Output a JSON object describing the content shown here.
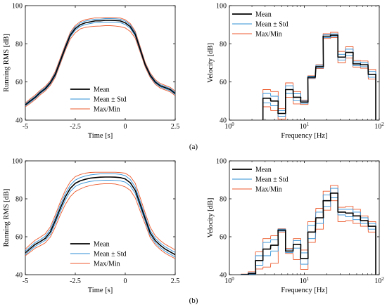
{
  "captions": [
    "(a)",
    "(b)"
  ],
  "legend": [
    "Mean",
    "Mean ± Std",
    "Max/Min"
  ],
  "colors": {
    "mean": "#000000",
    "std": "#2e8fd6",
    "maxmin": "#ec5a2c"
  },
  "chart_data": [
    {
      "type": "line",
      "panel": "a-left",
      "xlabel": "Time [s]",
      "ylabel": "Running RMS [dB]",
      "xlim": [
        -5,
        2.5
      ],
      "ylim": [
        40,
        100
      ],
      "xticks": [
        -5,
        -2.5,
        0,
        2.5
      ],
      "xticklabels": [
        "-5",
        "-2.5",
        "0",
        "2.5"
      ],
      "yticks": [
        40,
        60,
        80,
        100
      ],
      "yticklabels": [
        "40",
        "60",
        "80",
        "100"
      ],
      "x": [
        -5,
        -4.75,
        -4.5,
        -4.25,
        -4,
        -3.75,
        -3.5,
        -3.25,
        -3,
        -2.75,
        -2.5,
        -2.25,
        -2,
        -1.75,
        -1.5,
        -1.25,
        -1,
        -0.75,
        -0.5,
        -0.25,
        0,
        0.25,
        0.5,
        0.75,
        1,
        1.25,
        1.5,
        1.75,
        2,
        2.25,
        2.5
      ],
      "series": [
        {
          "name": "Mean",
          "values": [
            48,
            50,
            52,
            54.5,
            56.5,
            59.5,
            64,
            71,
            78,
            84.5,
            88,
            90,
            91,
            91.5,
            92,
            92,
            92.3,
            92.3,
            92.2,
            92,
            91,
            89,
            85,
            77,
            69,
            63.5,
            60,
            58,
            57,
            56,
            54
          ]
        },
        {
          "name": "Mean + Std",
          "values": [
            48.5,
            50.6,
            52.6,
            55.1,
            57.1,
            60.1,
            64.8,
            71.8,
            78.8,
            85.3,
            88.9,
            90.9,
            91.9,
            92.4,
            92.9,
            92.9,
            93.2,
            93.2,
            93.1,
            92.9,
            91.9,
            89.9,
            85.9,
            77.8,
            69.6,
            64.1,
            60.6,
            58.6,
            57.6,
            56.6,
            54.6
          ]
        },
        {
          "name": "Mean - Std",
          "values": [
            47.5,
            49.4,
            51.4,
            53.9,
            55.9,
            58.9,
            63.2,
            70.2,
            77.2,
            83.7,
            87.1,
            89.1,
            90.1,
            90.6,
            91.1,
            91.1,
            91.4,
            91.4,
            91.3,
            91.1,
            90.1,
            88.1,
            84.1,
            76.2,
            68.4,
            62.9,
            59.4,
            57.4,
            56.4,
            55.4,
            53.4
          ]
        },
        {
          "name": "Max",
          "values": [
            49,
            51.2,
            53.2,
            55.7,
            57.7,
            60.7,
            65.5,
            72.5,
            79.5,
            86,
            89.6,
            91.6,
            92.6,
            93.1,
            93.6,
            93.6,
            93.8,
            93.8,
            93.7,
            93.5,
            92.6,
            90.6,
            86.6,
            78.5,
            70.2,
            64.7,
            61.2,
            59.2,
            58.2,
            57.2,
            55.2
          ]
        },
        {
          "name": "Min",
          "values": [
            47,
            48.8,
            50.8,
            53.3,
            55.3,
            58.2,
            62.5,
            69.5,
            76.5,
            82.5,
            85.8,
            87.8,
            88.6,
            89,
            89.2,
            89.3,
            89.5,
            89.5,
            89.3,
            89,
            88.3,
            86.5,
            83,
            75.5,
            67.8,
            62.3,
            58.8,
            56.8,
            55.8,
            54.8,
            52.8
          ]
        }
      ]
    },
    {
      "type": "line",
      "panel": "a-right",
      "xscale": "log",
      "xlabel": "Frequency [Hz]",
      "ylabel": "Velocity [dB]",
      "xlim": [
        1,
        100
      ],
      "ylim": [
        40,
        100
      ],
      "xticks": [
        1,
        10,
        100
      ],
      "xticklabels": [
        "10^0",
        "10^1",
        "10^2"
      ],
      "yticks": [
        40,
        60,
        80,
        100
      ],
      "yticklabels": [
        "40",
        "60",
        "80",
        "100"
      ],
      "x": [
        3.15,
        4,
        5,
        6.3,
        8,
        10,
        12.5,
        16,
        20,
        25,
        31.5,
        40,
        50,
        63,
        80
      ],
      "series": [
        {
          "name": "Mean",
          "values": [
            51.5,
            50,
            43.5,
            56,
            52,
            49.5,
            62.5,
            68,
            84,
            84.5,
            73,
            75.5,
            69.5,
            69,
            64
          ]
        },
        {
          "name": "Mean + Std",
          "values": [
            54,
            52.5,
            45,
            58,
            53.8,
            50.2,
            63,
            68.7,
            84.7,
            85.2,
            74.5,
            77.2,
            70.5,
            70,
            65.5
          ]
        },
        {
          "name": "Mean - Std",
          "values": [
            49,
            47.5,
            42,
            54,
            50.2,
            48.8,
            62,
            67.3,
            83.3,
            83.8,
            71.5,
            73.8,
            68.5,
            68,
            62.5
          ]
        },
        {
          "name": "Max",
          "values": [
            56,
            55,
            46,
            59.5,
            55,
            50.5,
            63.2,
            69,
            85.3,
            86,
            76,
            78.5,
            71.2,
            71,
            66.5
          ]
        },
        {
          "name": "Min",
          "values": [
            47,
            45,
            40.5,
            52,
            48.5,
            48.2,
            61.8,
            67,
            82.8,
            83.3,
            70,
            72.5,
            67.8,
            67.2,
            61.5
          ]
        }
      ]
    },
    {
      "type": "line",
      "panel": "b-left",
      "xlabel": "Time [s]",
      "ylabel": "Running RMS [dB]",
      "xlim": [
        -5,
        2.5
      ],
      "ylim": [
        40,
        100
      ],
      "xticks": [
        -5,
        -2.5,
        0,
        2.5
      ],
      "xticklabels": [
        "-5",
        "-2.5",
        "0",
        "2.5"
      ],
      "yticks": [
        40,
        60,
        80,
        100
      ],
      "yticklabels": [
        "40",
        "60",
        "80",
        "100"
      ],
      "x": [
        -5,
        -4.75,
        -4.5,
        -4.25,
        -4,
        -3.75,
        -3.5,
        -3.25,
        -3,
        -2.75,
        -2.5,
        -2.25,
        -2,
        -1.75,
        -1.5,
        -1.25,
        -1,
        -0.75,
        -0.5,
        -0.25,
        0,
        0.25,
        0.5,
        0.75,
        1,
        1.25,
        1.5,
        1.75,
        2,
        2.25,
        2.5
      ],
      "series": [
        {
          "name": "Mean",
          "values": [
            51.5,
            53.8,
            56,
            57.5,
            59.2,
            62.5,
            68.5,
            75,
            81,
            85.5,
            88.2,
            89.5,
            90.3,
            90.9,
            91.2,
            91.4,
            91.5,
            91.5,
            91.4,
            91.2,
            90.5,
            88.5,
            84.5,
            77,
            69.5,
            62,
            58,
            55.5,
            53.5,
            52,
            50.5
          ]
        },
        {
          "name": "Mean + Std",
          "values": [
            52.5,
            54.8,
            57,
            58.5,
            60.3,
            63.8,
            70,
            76.7,
            82.7,
            87.2,
            89.9,
            91.2,
            92,
            92.6,
            92.9,
            93.1,
            93.2,
            93.2,
            93.1,
            92.9,
            92.2,
            90.2,
            86.2,
            78.6,
            70.9,
            63.3,
            59.2,
            56.7,
            54.7,
            53.2,
            51.7
          ]
        },
        {
          "name": "Mean - Std",
          "values": [
            50.5,
            52.8,
            55,
            56.5,
            58.1,
            61.2,
            67,
            73.3,
            79.3,
            83.8,
            86.5,
            87.8,
            88.6,
            89.2,
            89.5,
            89.7,
            89.8,
            89.8,
            89.7,
            89.5,
            88.8,
            86.8,
            82.8,
            75.4,
            68.1,
            60.7,
            56.8,
            54.3,
            52.3,
            50.8,
            49.3
          ]
        },
        {
          "name": "Max",
          "values": [
            53.5,
            56,
            58.2,
            59.8,
            61.6,
            65.2,
            71.5,
            78.3,
            84.5,
            89,
            91.7,
            92.8,
            93.5,
            93.9,
            94,
            94,
            94,
            94,
            94,
            93.8,
            93.5,
            91.8,
            88.2,
            80.5,
            72.5,
            65,
            60.6,
            58,
            56,
            54.6,
            53
          ]
        },
        {
          "name": "Min",
          "values": [
            50,
            52,
            54,
            55.3,
            56.8,
            59.8,
            65.2,
            71.5,
            77,
            81.2,
            83.8,
            85.2,
            86.3,
            87,
            87.5,
            87.8,
            88,
            88,
            87.8,
            87.2,
            86.3,
            84.5,
            80.5,
            73.5,
            66.5,
            59.5,
            55.8,
            53.3,
            51.3,
            49.8,
            48.5
          ]
        }
      ]
    },
    {
      "type": "line",
      "panel": "b-right",
      "xscale": "log",
      "xlabel": "Frequency [Hz]",
      "ylabel": "Velocity [dB]",
      "xlim": [
        1,
        100
      ],
      "ylim": [
        40,
        100
      ],
      "xticks": [
        1,
        10,
        100
      ],
      "xticklabels": [
        "10^0",
        "10^1",
        "10^2"
      ],
      "yticks": [
        40,
        60,
        80,
        100
      ],
      "yticklabels": [
        "40",
        "60",
        "80",
        "100"
      ],
      "x": [
        1.6,
        2,
        2.5,
        3.15,
        4,
        5,
        6.3,
        8,
        10,
        12.5,
        16,
        20,
        25,
        31.5,
        40,
        50,
        63,
        80
      ],
      "series": [
        {
          "name": "Mean",
          "values": [
            40,
            40.5,
            47.5,
            53.5,
            55.5,
            63.5,
            52.5,
            56,
            48.5,
            62.5,
            70,
            79,
            83,
            73,
            72.5,
            71,
            68.5,
            65.5
          ]
        },
        {
          "name": "Mean + Std",
          "values": [
            40.2,
            41,
            50,
            57,
            58.5,
            64,
            53.3,
            58,
            51.5,
            66,
            73,
            82,
            85.5,
            74.5,
            74.5,
            73,
            70,
            67
          ]
        },
        {
          "name": "Mean - Std",
          "values": [
            40,
            40.2,
            45,
            50,
            52.5,
            63,
            51.7,
            54,
            45.5,
            59,
            67,
            76,
            80.5,
            71.5,
            70.5,
            69,
            67,
            64
          ]
        },
        {
          "name": "Max",
          "values": [
            40.3,
            41.5,
            52,
            59,
            60.5,
            64.2,
            53.8,
            59,
            53,
            68,
            75,
            84,
            87,
            75.5,
            76,
            74.5,
            71,
            68
          ]
        },
        {
          "name": "Min",
          "values": [
            40,
            40,
            43,
            44,
            46,
            62.5,
            51.2,
            48,
            42.8,
            57,
            64,
            74,
            79,
            68,
            68.5,
            67,
            65.5,
            62.5
          ]
        }
      ]
    }
  ]
}
